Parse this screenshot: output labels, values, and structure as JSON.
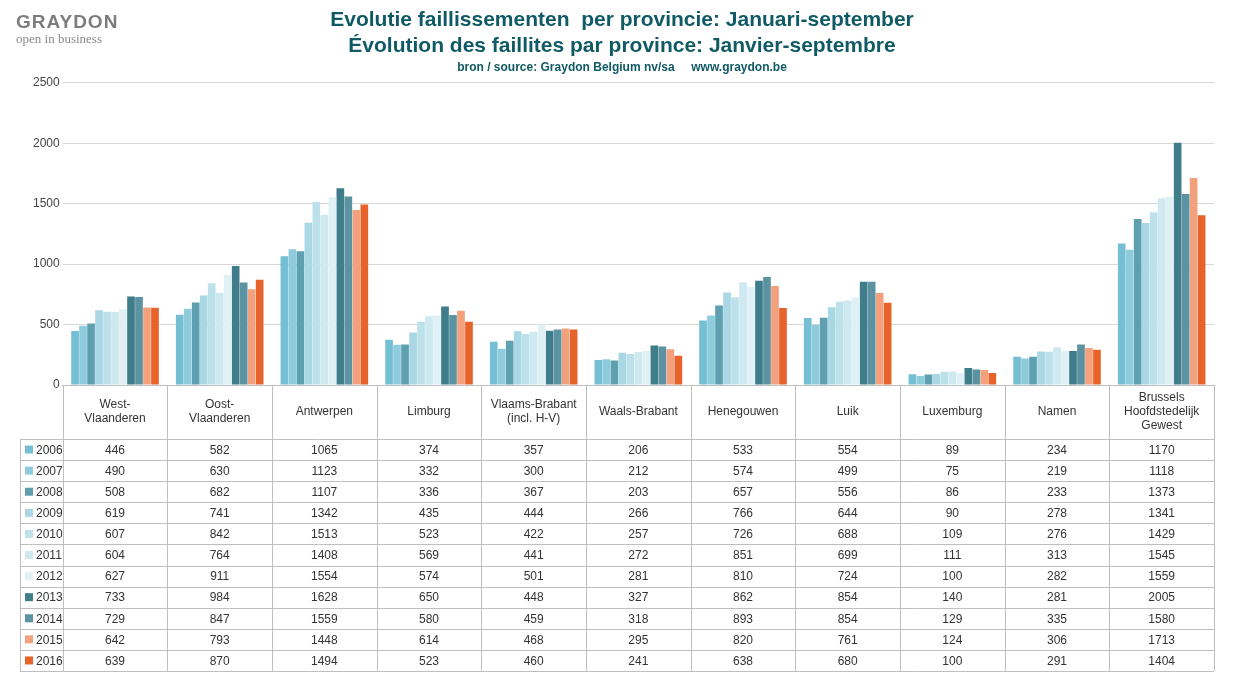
{
  "logo": {
    "name": "GRAYDON",
    "tagline": "open in business"
  },
  "chart_data": {
    "type": "bar",
    "title": [
      "Evolutie faillissementen  per provincie: Januari-september",
      "Évolution des faillites par province: Janvier-septembre"
    ],
    "subtitle": "bron / source: Graydon Belgium nv/sa     www.graydon.be",
    "categories": [
      "West-Vlaanderen",
      "Oost-Vlaanderen",
      "Antwerpen",
      "Limburg",
      "Vlaams-Brabant (incl. H-V)",
      "Waals-Brabant",
      "Henegouwen",
      "Luik",
      "Luxemburg",
      "Namen",
      "Brussels Hoofdstedelijk Gewest"
    ],
    "series": [
      {
        "name": "2006",
        "color": "#74bfd4",
        "values": [
          446,
          582,
          1065,
          374,
          357,
          206,
          533,
          554,
          89,
          234,
          1170
        ]
      },
      {
        "name": "2007",
        "color": "#8ecbdc",
        "values": [
          490,
          630,
          1123,
          332,
          300,
          212,
          574,
          499,
          75,
          219,
          1118
        ]
      },
      {
        "name": "2008",
        "color": "#5e9fb0",
        "values": [
          508,
          682,
          1107,
          336,
          367,
          203,
          657,
          556,
          86,
          233,
          1373
        ]
      },
      {
        "name": "2009",
        "color": "#a9d7e4",
        "values": [
          619,
          741,
          1342,
          435,
          444,
          266,
          766,
          644,
          90,
          278,
          1341
        ]
      },
      {
        "name": "2010",
        "color": "#bde1eb",
        "values": [
          607,
          842,
          1513,
          523,
          422,
          257,
          726,
          688,
          109,
          276,
          1429
        ]
      },
      {
        "name": "2011",
        "color": "#cfe9f1",
        "values": [
          604,
          764,
          1408,
          569,
          441,
          272,
          851,
          699,
          111,
          313,
          1545
        ]
      },
      {
        "name": "2012",
        "color": "#e0f1f6",
        "values": [
          627,
          911,
          1554,
          574,
          501,
          281,
          810,
          724,
          100,
          282,
          1559
        ]
      },
      {
        "name": "2013",
        "color": "#3f7d8a",
        "values": [
          733,
          984,
          1628,
          650,
          448,
          327,
          862,
          854,
          140,
          281,
          2005
        ]
      },
      {
        "name": "2014",
        "color": "#5b93a2",
        "values": [
          729,
          847,
          1559,
          580,
          459,
          318,
          893,
          854,
          129,
          335,
          1580
        ]
      },
      {
        "name": "2015",
        "color": "#f2a17c",
        "values": [
          642,
          793,
          1448,
          614,
          468,
          295,
          820,
          761,
          124,
          306,
          1713
        ]
      },
      {
        "name": "2016",
        "color": "#e8632b",
        "values": [
          639,
          870,
          1494,
          523,
          460,
          241,
          638,
          680,
          100,
          291,
          1404
        ]
      }
    ],
    "ylim": [
      0,
      2500
    ],
    "yticks": [
      0,
      500,
      1000,
      1500,
      2000,
      2500
    ],
    "grid": true
  }
}
